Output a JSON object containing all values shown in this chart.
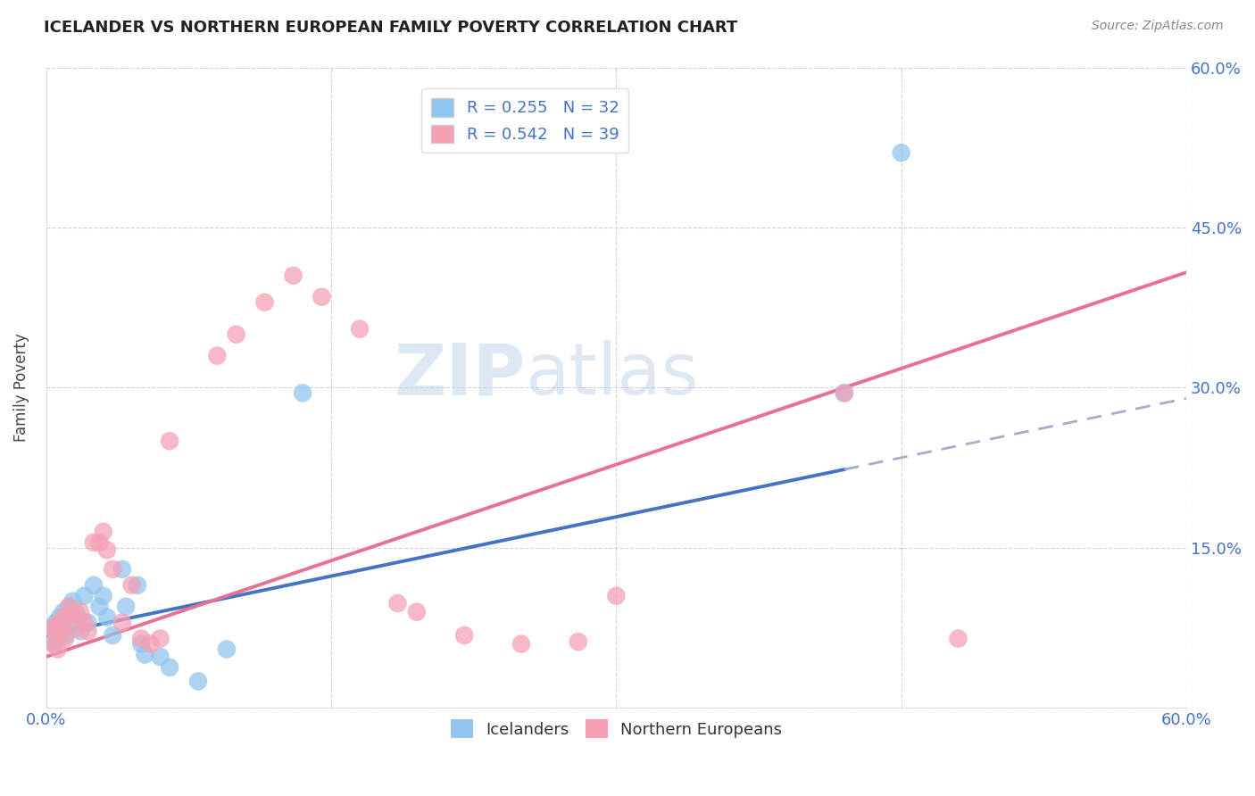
{
  "title": "ICELANDER VS NORTHERN EUROPEAN FAMILY POVERTY CORRELATION CHART",
  "source": "Source: ZipAtlas.com",
  "ylabel": "Family Poverty",
  "watermark_zip": "ZIP",
  "watermark_atlas": "atlas",
  "xlim": [
    0.0,
    0.6
  ],
  "ylim": [
    0.0,
    0.6
  ],
  "yticks": [
    0.0,
    0.15,
    0.3,
    0.45,
    0.6
  ],
  "ytick_labels": [
    "",
    "15.0%",
    "30.0%",
    "45.0%",
    "60.0%"
  ],
  "xtick_labels_show": [
    "0.0%",
    "60.0%"
  ],
  "xtick_positions_show": [
    0.0,
    0.6
  ],
  "icelander_color": "#92c5f0",
  "northern_color": "#f5a0b5",
  "icelander_R": 0.255,
  "icelander_N": 32,
  "northern_R": 0.542,
  "northern_N": 39,
  "legend_label1": "Icelanders",
  "legend_label2": "Northern Europeans",
  "blue_line_color": "#4472c4",
  "pink_line_color": "#e87090",
  "dash_line_color": "#aaaacc",
  "blue_intercept": 0.068,
  "blue_slope": 0.37,
  "pink_intercept": 0.048,
  "pink_slope": 0.6,
  "icelander_scatter_x": [
    0.003,
    0.004,
    0.005,
    0.006,
    0.007,
    0.008,
    0.009,
    0.01,
    0.012,
    0.013,
    0.014,
    0.016,
    0.018,
    0.02,
    0.022,
    0.025,
    0.028,
    0.03,
    0.032,
    0.035,
    0.04,
    0.042,
    0.048,
    0.05,
    0.052,
    0.06,
    0.065,
    0.08,
    0.095,
    0.135,
    0.42,
    0.45
  ],
  "icelander_scatter_y": [
    0.075,
    0.06,
    0.08,
    0.065,
    0.085,
    0.072,
    0.09,
    0.068,
    0.095,
    0.078,
    0.1,
    0.088,
    0.072,
    0.105,
    0.08,
    0.115,
    0.095,
    0.105,
    0.085,
    0.068,
    0.13,
    0.095,
    0.115,
    0.06,
    0.05,
    0.048,
    0.038,
    0.025,
    0.055,
    0.295,
    0.295,
    0.52
  ],
  "northern_scatter_x": [
    0.003,
    0.004,
    0.005,
    0.006,
    0.007,
    0.008,
    0.009,
    0.01,
    0.012,
    0.014,
    0.016,
    0.018,
    0.02,
    0.022,
    0.025,
    0.028,
    0.03,
    0.032,
    0.035,
    0.04,
    0.045,
    0.05,
    0.055,
    0.06,
    0.065,
    0.09,
    0.1,
    0.115,
    0.13,
    0.145,
    0.165,
    0.185,
    0.195,
    0.22,
    0.25,
    0.28,
    0.3,
    0.42,
    0.48
  ],
  "northern_scatter_y": [
    0.075,
    0.06,
    0.07,
    0.055,
    0.08,
    0.072,
    0.085,
    0.065,
    0.095,
    0.088,
    0.075,
    0.09,
    0.08,
    0.072,
    0.155,
    0.155,
    0.165,
    0.148,
    0.13,
    0.08,
    0.115,
    0.065,
    0.06,
    0.065,
    0.25,
    0.33,
    0.35,
    0.38,
    0.405,
    0.385,
    0.355,
    0.098,
    0.09,
    0.068,
    0.06,
    0.062,
    0.105,
    0.295,
    0.065
  ]
}
